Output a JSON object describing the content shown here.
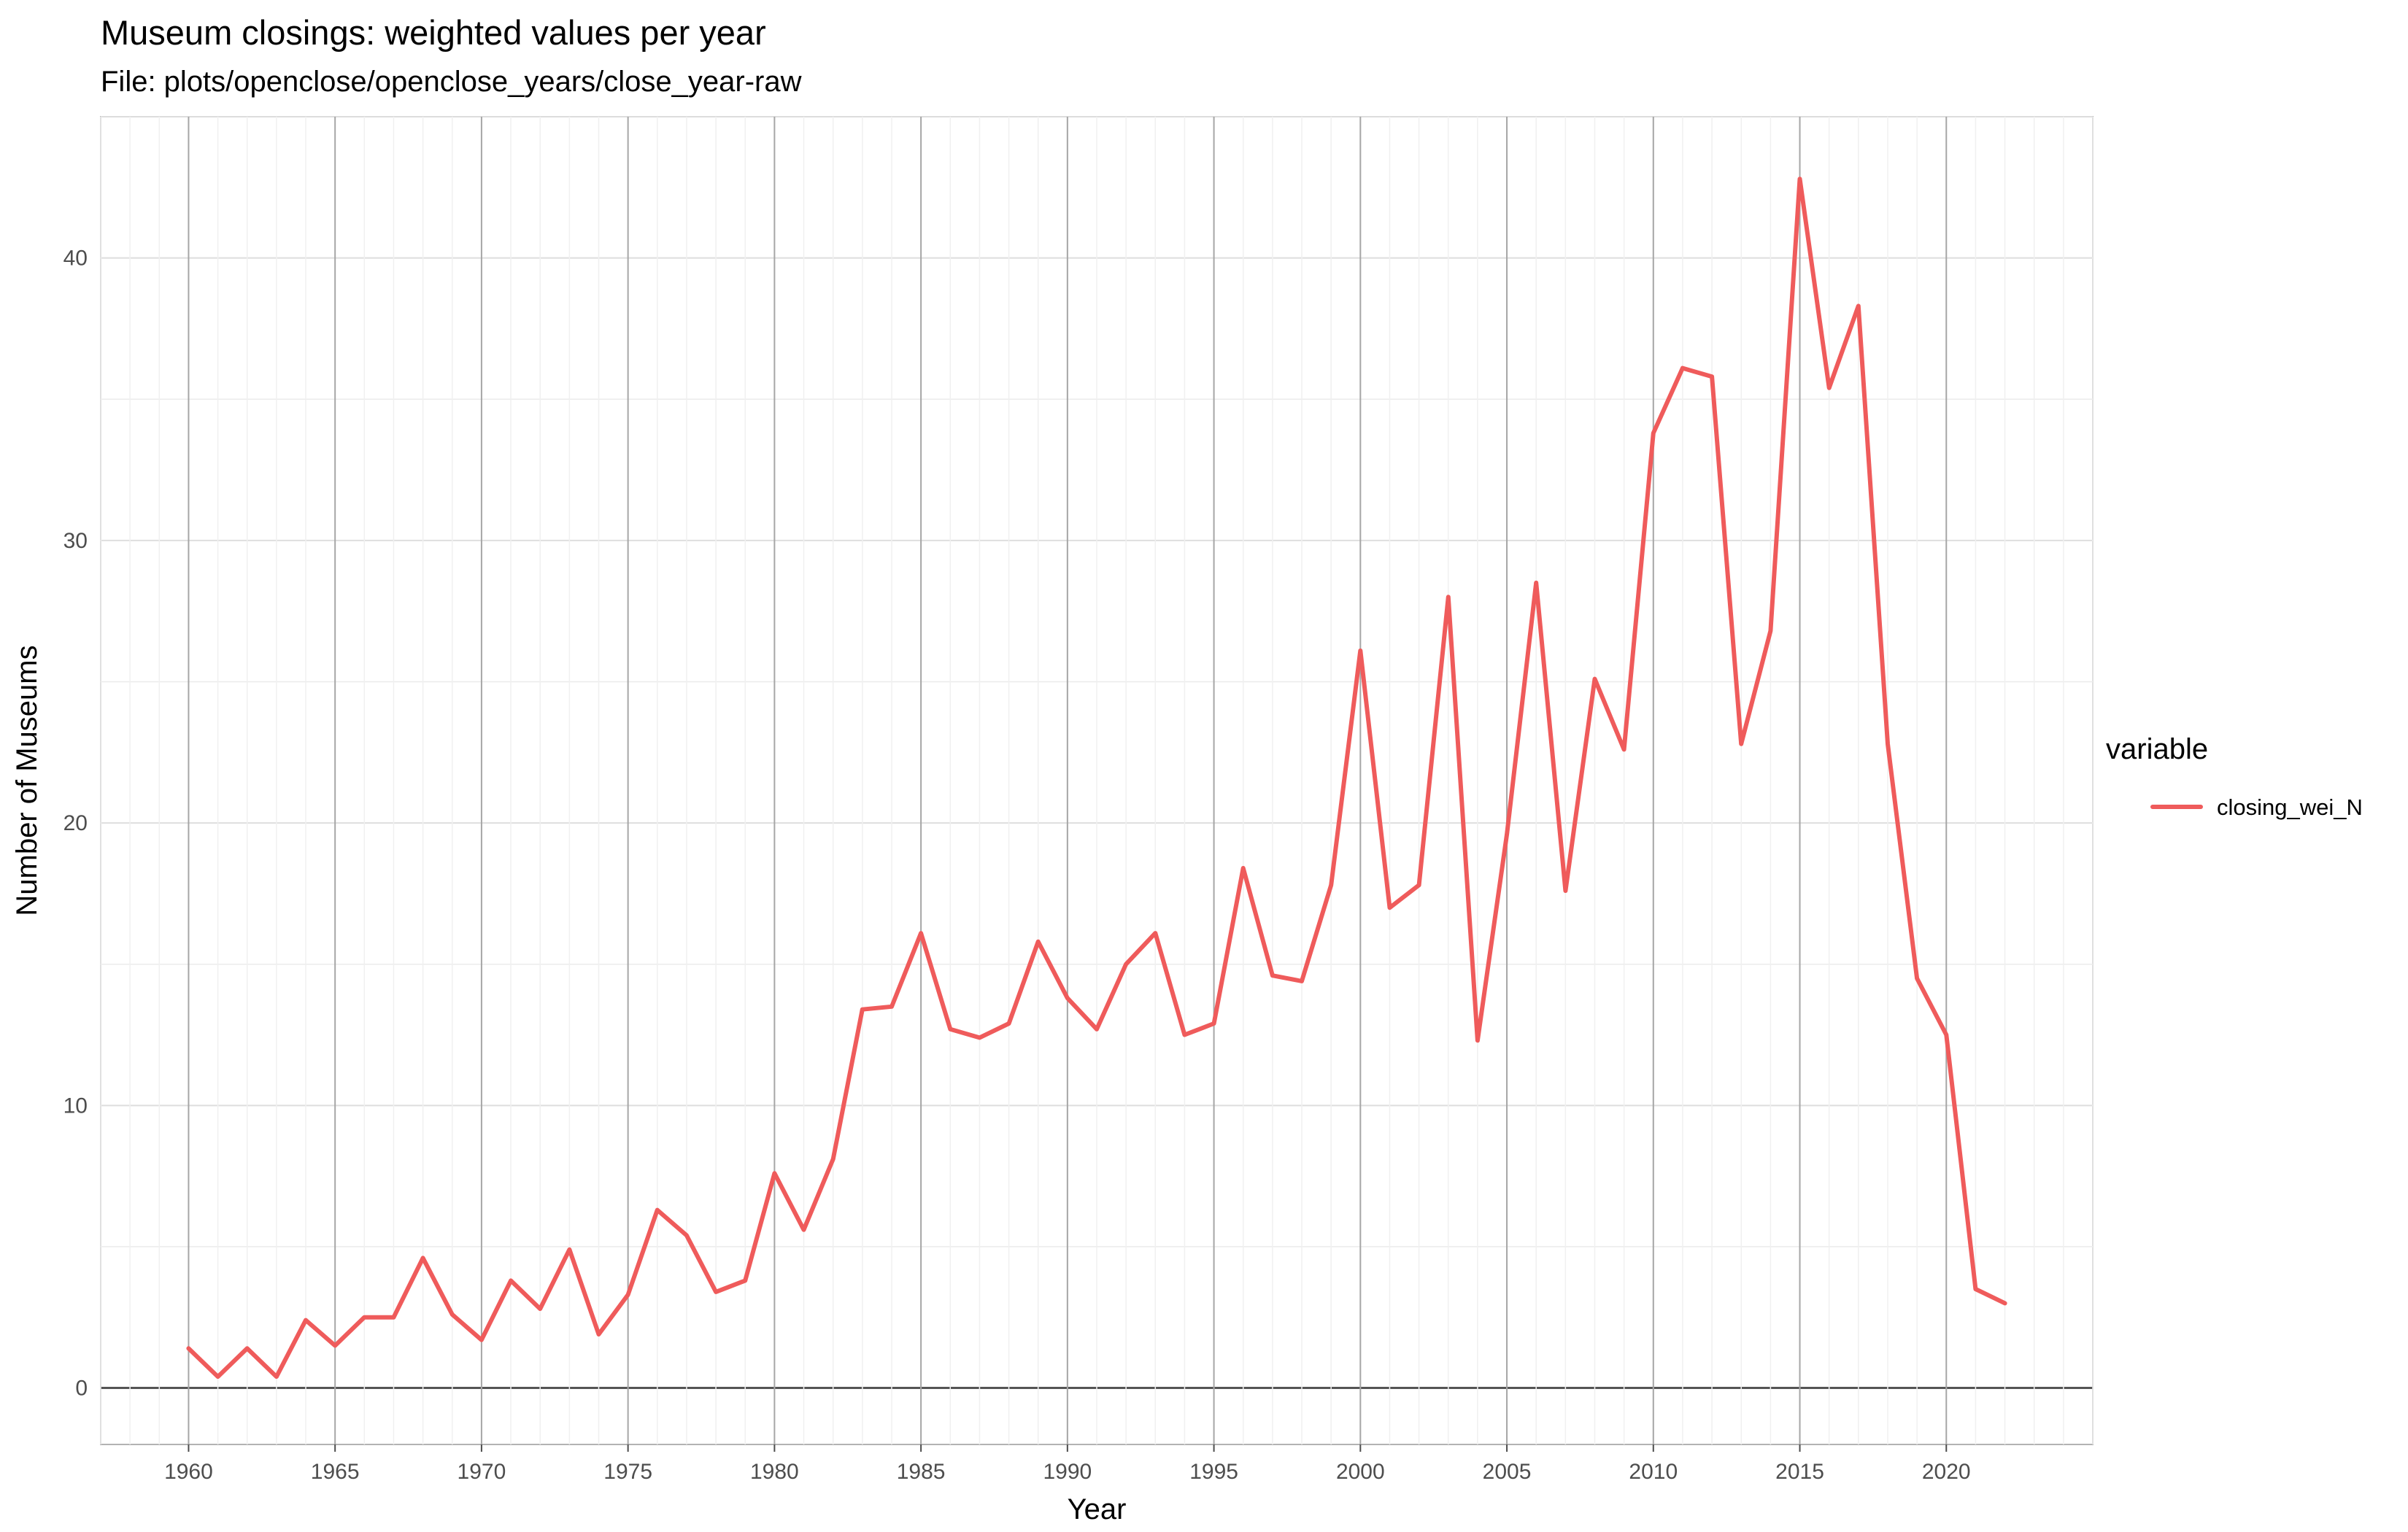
{
  "title": "Museum closings: weighted values per year",
  "subtitle": "File: plots/openclose/openclose_years/close_year-raw",
  "chart_data": {
    "type": "line",
    "title": "Museum closings: weighted values per year",
    "subtitle": "File: plots/openclose/openclose_years/close_year-raw",
    "xlabel": "Year",
    "ylabel": "Number of Museums",
    "xlim": [
      1957,
      2025
    ],
    "ylim": [
      -2,
      45
    ],
    "x_ticks": [
      1960,
      1965,
      1970,
      1975,
      1980,
      1985,
      1990,
      1995,
      2000,
      2005,
      2010,
      2015,
      2020
    ],
    "y_ticks": [
      0,
      10,
      20,
      30,
      40
    ],
    "grid": true,
    "legend": {
      "title": "variable",
      "position": "right"
    },
    "x": [
      1960,
      1961,
      1962,
      1963,
      1964,
      1965,
      1966,
      1967,
      1968,
      1969,
      1970,
      1971,
      1972,
      1973,
      1974,
      1975,
      1976,
      1977,
      1978,
      1979,
      1980,
      1981,
      1982,
      1983,
      1984,
      1985,
      1986,
      1987,
      1988,
      1989,
      1990,
      1991,
      1992,
      1993,
      1994,
      1995,
      1996,
      1997,
      1998,
      1999,
      2000,
      2001,
      2002,
      2003,
      2004,
      2005,
      2006,
      2007,
      2008,
      2009,
      2010,
      2011,
      2012,
      2013,
      2014,
      2015,
      2016,
      2017,
      2018,
      2019,
      2020,
      2021,
      2022
    ],
    "series": [
      {
        "name": "closing_wei_N",
        "color": "#ef5b5b",
        "values": [
          1.4,
          0.4,
          1.4,
          0.4,
          2.4,
          1.5,
          2.5,
          2.5,
          4.6,
          2.6,
          1.7,
          3.8,
          2.8,
          4.9,
          1.9,
          3.3,
          6.3,
          5.4,
          3.4,
          3.8,
          7.6,
          5.6,
          8.1,
          13.4,
          13.5,
          16.1,
          12.7,
          12.4,
          12.9,
          15.8,
          13.8,
          12.7,
          15.0,
          16.1,
          12.5,
          12.9,
          18.4,
          14.6,
          14.4,
          17.8,
          26.1,
          17.0,
          17.8,
          28.0,
          12.3,
          19.6,
          28.5,
          17.6,
          25.1,
          22.6,
          33.8,
          36.1,
          35.8,
          22.8,
          26.8,
          42.8,
          35.4,
          38.3,
          22.8,
          14.5,
          12.5,
          3.5,
          3.0
        ]
      }
    ]
  }
}
